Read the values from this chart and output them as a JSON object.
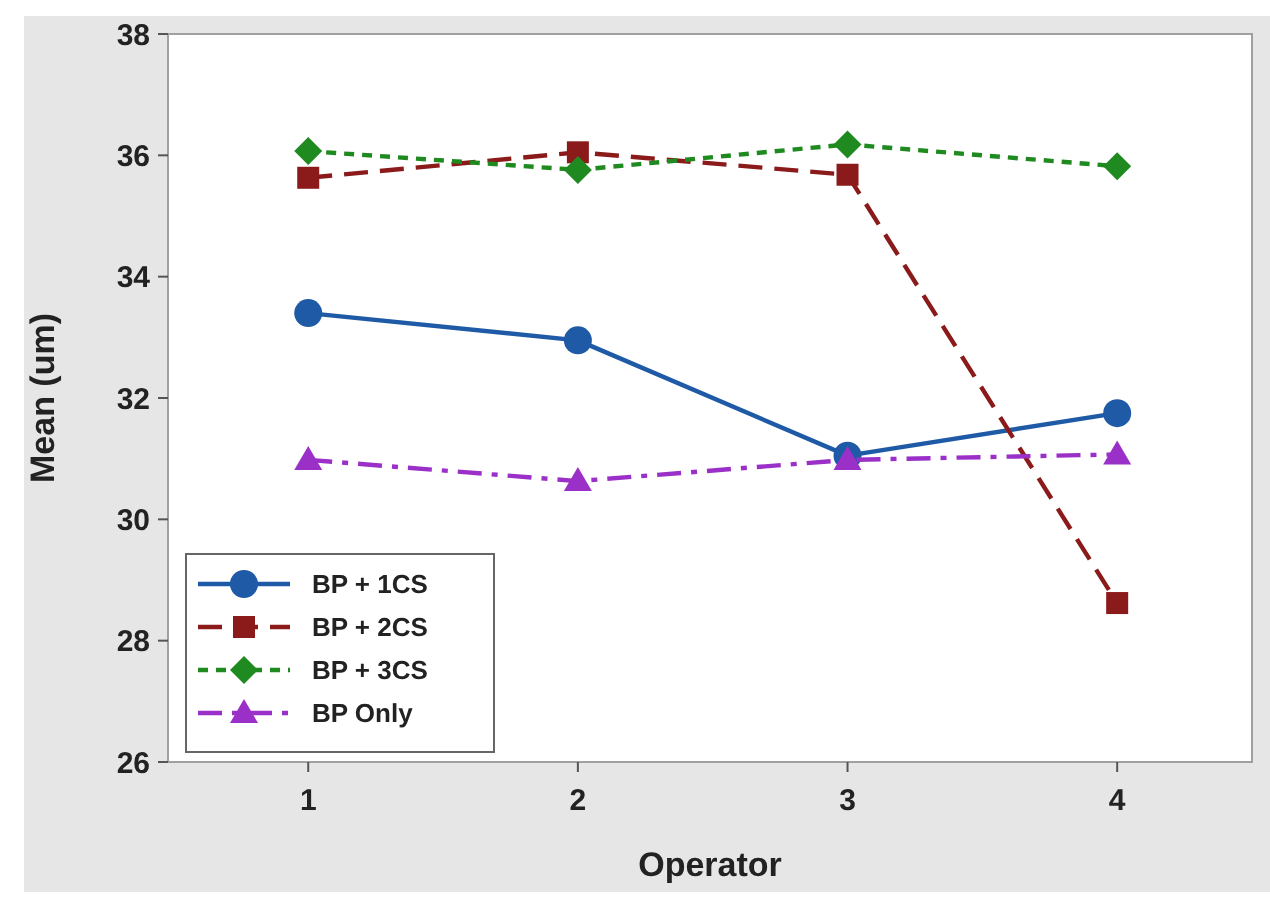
{
  "chart_data": {
    "type": "line",
    "xlabel": "Operator",
    "ylabel": "Mean (um)",
    "x": [
      1,
      2,
      3,
      4
    ],
    "xlim": [
      0.48,
      4.5
    ],
    "xticks": [
      1,
      2,
      3,
      4
    ],
    "ylim": [
      26,
      38
    ],
    "yticks": [
      26,
      28,
      30,
      32,
      34,
      36,
      38
    ],
    "grid": false,
    "legend": "bottom left",
    "series": [
      {
        "name": "BP + 1CS",
        "color": "#1f5aa6",
        "marker": "circle",
        "line_style": "solid",
        "values": [
          33.4,
          32.95,
          31.05,
          31.75
        ]
      },
      {
        "name": "BP + 2CS",
        "color": "#8b1a1a",
        "marker": "square",
        "line_style": "dashed",
        "values": [
          35.63,
          36.05,
          35.68,
          28.62
        ]
      },
      {
        "name": "BP + 3CS",
        "color": "#1f8a1f",
        "marker": "diamond",
        "line_style": "dotted",
        "values": [
          36.07,
          35.76,
          36.18,
          35.82
        ]
      },
      {
        "name": "BP Only",
        "color": "#9b30c8",
        "marker": "triangle",
        "line_style": "dashdot",
        "values": [
          30.98,
          30.63,
          30.98,
          31.07
        ]
      }
    ]
  }
}
